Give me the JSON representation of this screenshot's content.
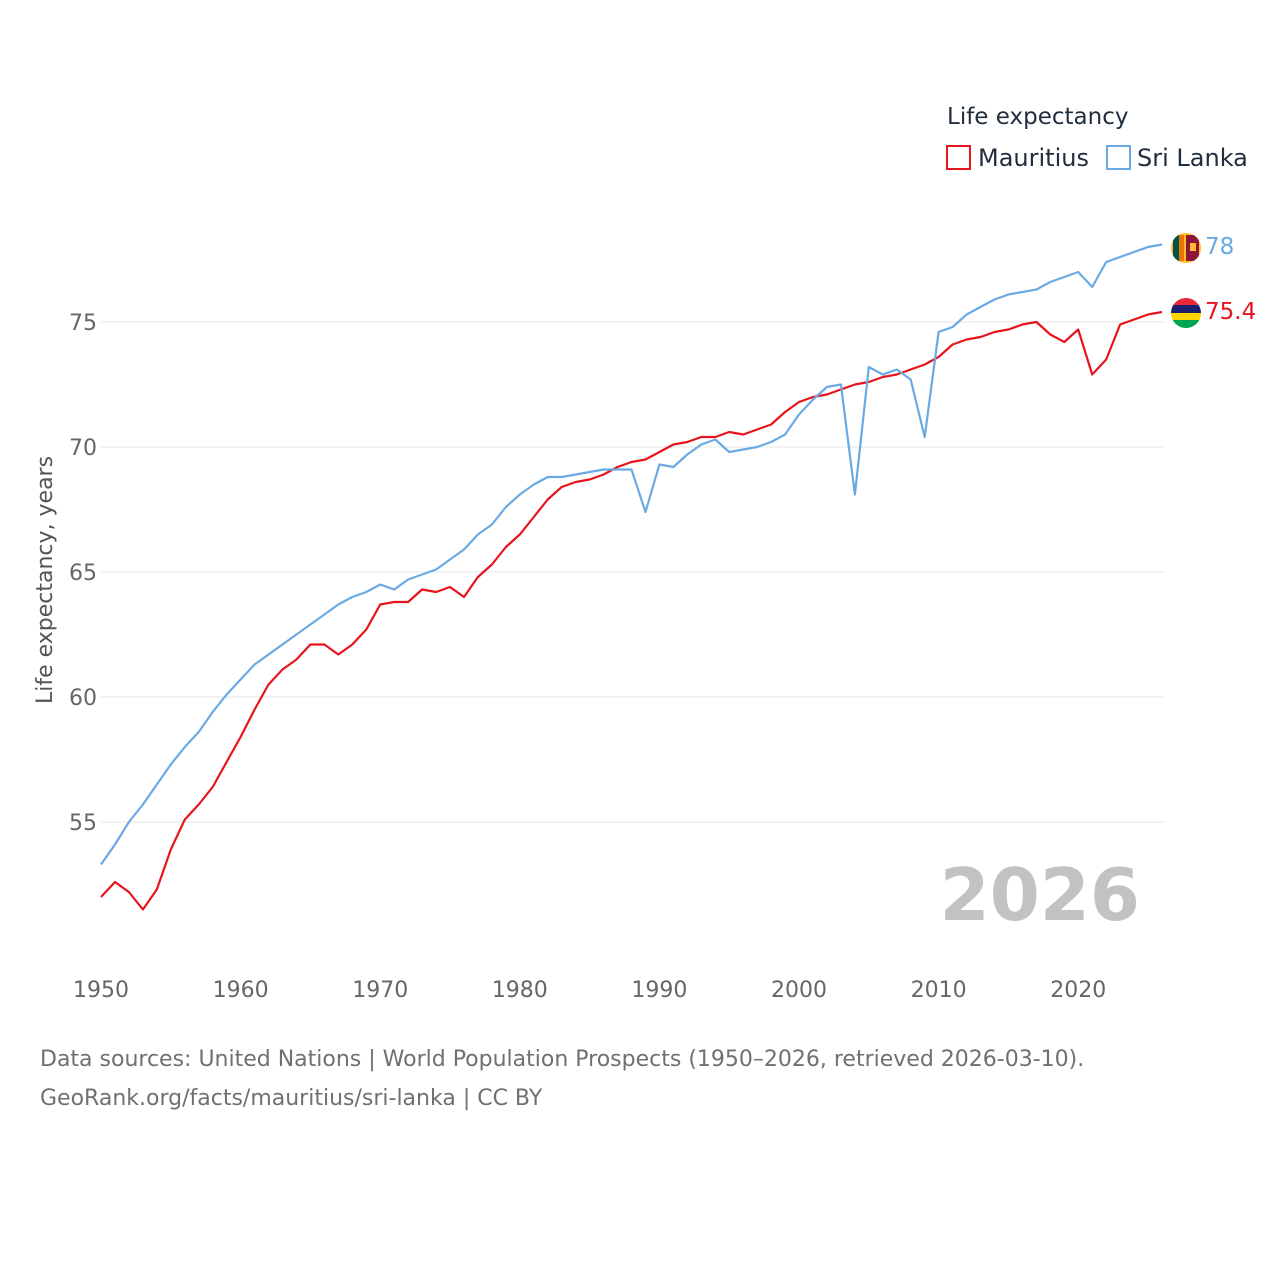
{
  "colors": {
    "mauritius": "#e8141b",
    "sri_lanka": "#6aaae4",
    "grid": "#e6e6e6",
    "year_label": "#c2c2c2",
    "sl_flag_yellow": "#ffbe29",
    "sl_flag_maroon": "#8d153a",
    "sl_flag_green": "#00534e",
    "sl_flag_orange": "#eb7400",
    "mu_flag_red": "#ea2839",
    "mu_flag_blue": "#1a206d",
    "mu_flag_yellow": "#ffd500",
    "mu_flag_green": "#00a551"
  },
  "footer": {
    "line1": "Data sources: United Nations | World Population Prospects (1950–2026, retrieved 2026-03-10).",
    "line2": "GeoRank.org/facts/mauritius/sri-lanka | CC BY"
  },
  "chart_data": {
    "type": "line",
    "legend_title": "Life expectancy",
    "legend_position": "top-right",
    "ylabel": "Life expectancy, years",
    "xlabel": "",
    "current_year": "2026",
    "x_ticks": [
      1950,
      1960,
      1970,
      1980,
      1990,
      2000,
      2010,
      2020
    ],
    "y_ticks": [
      55,
      60,
      65,
      70,
      75
    ],
    "xlim": [
      1950,
      2026
    ],
    "ylim": [
      50.1,
      80
    ],
    "grid": true,
    "x": [
      1950,
      1951,
      1952,
      1953,
      1954,
      1955,
      1956,
      1957,
      1958,
      1959,
      1960,
      1961,
      1962,
      1963,
      1964,
      1965,
      1966,
      1967,
      1968,
      1969,
      1970,
      1971,
      1972,
      1973,
      1974,
      1975,
      1976,
      1977,
      1978,
      1979,
      1980,
      1981,
      1982,
      1983,
      1984,
      1985,
      1986,
      1987,
      1988,
      1989,
      1990,
      1991,
      1992,
      1993,
      1994,
      1995,
      1996,
      1997,
      1998,
      1999,
      2000,
      2001,
      2002,
      2003,
      2004,
      2005,
      2006,
      2007,
      2008,
      2009,
      2010,
      2011,
      2012,
      2013,
      2014,
      2015,
      2016,
      2017,
      2018,
      2019,
      2020,
      2021,
      2022,
      2023,
      2024,
      2025,
      2026
    ],
    "series": [
      {
        "name": "Mauritius",
        "color_key": "mauritius",
        "end_label": "75.4",
        "values": [
          52.0,
          52.6,
          52.2,
          51.5,
          52.3,
          53.9,
          55.1,
          55.7,
          56.4,
          57.4,
          58.4,
          59.5,
          60.5,
          61.1,
          61.5,
          62.1,
          62.1,
          61.7,
          62.1,
          62.7,
          63.7,
          63.8,
          63.8,
          64.3,
          64.2,
          64.4,
          64.0,
          64.8,
          65.3,
          66.0,
          66.5,
          67.2,
          67.9,
          68.4,
          68.6,
          68.7,
          68.9,
          69.2,
          69.4,
          69.5,
          69.8,
          70.1,
          70.2,
          70.4,
          70.4,
          70.6,
          70.5,
          70.7,
          70.9,
          71.4,
          71.8,
          72.0,
          72.1,
          72.3,
          72.5,
          72.6,
          72.8,
          72.9,
          73.1,
          73.3,
          73.6,
          74.1,
          74.3,
          74.4,
          74.6,
          74.7,
          74.9,
          75.0,
          74.5,
          74.2,
          74.7,
          72.9,
          73.5,
          74.9,
          75.1,
          75.3,
          75.4
        ]
      },
      {
        "name": "Sri Lanka",
        "color_key": "sri_lanka",
        "end_label": "78",
        "values": [
          53.3,
          54.1,
          55.0,
          55.7,
          56.5,
          57.3,
          58.0,
          58.6,
          59.4,
          60.1,
          60.7,
          61.3,
          61.7,
          62.1,
          62.5,
          62.9,
          63.3,
          63.7,
          64.0,
          64.2,
          64.5,
          64.3,
          64.7,
          64.9,
          65.1,
          65.5,
          65.9,
          66.5,
          66.9,
          67.6,
          68.1,
          68.5,
          68.8,
          68.8,
          68.9,
          69.0,
          69.1,
          69.1,
          69.1,
          67.4,
          69.3,
          69.2,
          69.7,
          70.1,
          70.3,
          69.8,
          69.9,
          70.0,
          70.2,
          70.5,
          71.3,
          71.9,
          72.4,
          72.5,
          68.1,
          73.2,
          72.9,
          73.1,
          72.7,
          70.4,
          74.6,
          74.8,
          75.3,
          75.6,
          75.9,
          76.1,
          76.2,
          76.3,
          76.6,
          76.8,
          77.0,
          76.4,
          77.4,
          77.6,
          77.8,
          78.0,
          78.1
        ]
      }
    ]
  }
}
